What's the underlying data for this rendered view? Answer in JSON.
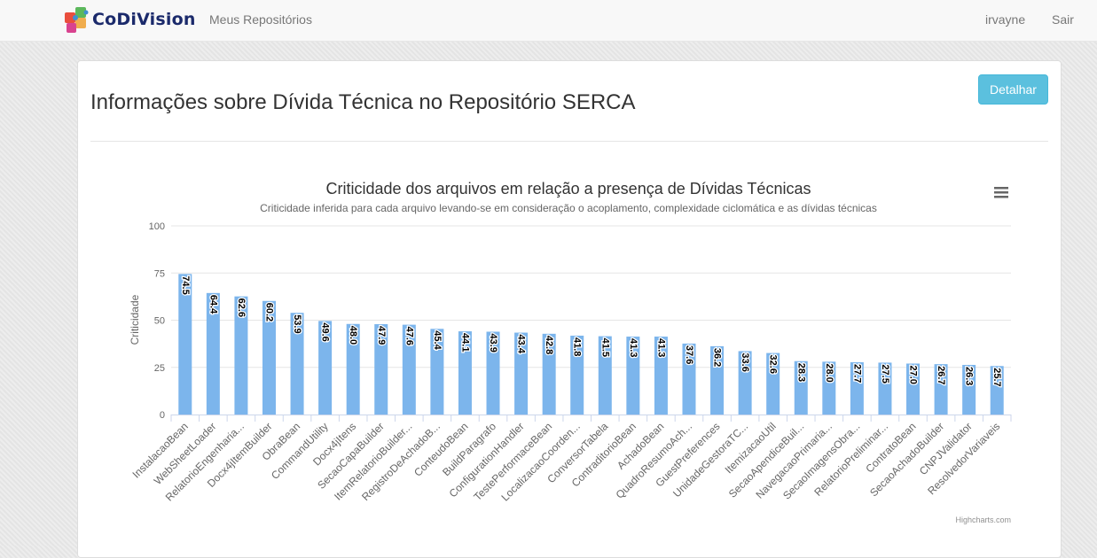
{
  "navbar": {
    "brand": "CoDiVision",
    "links": [
      "Meus Repositórios"
    ],
    "user": "irvayne",
    "logout": "Sair"
  },
  "page": {
    "title": "Informações sobre Dívida Técnica no Repositório SERCA",
    "detail_button": "Detalhar"
  },
  "chart_data": {
    "type": "bar",
    "title": "Criticidade dos arquivos em relação a presença de Dívidas Técnicas",
    "subtitle": "Criticidade inferida para cada arquivo levando-se em consideração o acoplamento, complexidade ciclomática e as dívidas técnicas",
    "ylabel": "Criticidade",
    "xlabel": "",
    "ylim": [
      0,
      100
    ],
    "yticks": [
      0,
      25,
      50,
      75,
      100
    ],
    "grid": true,
    "color": "#7cb5ec",
    "credits": "Highcharts.com",
    "categories": [
      "InstalacaoBean",
      "WebSheetLoader",
      "RelatorioEngenharia...",
      "Docx4jItemBuilder",
      "ObraBean",
      "CommandUtility",
      "Docx4jItens",
      "SecaoCapaBuilder",
      "ItemRelatorioBuilder...",
      "RegistroDeAchadoB...",
      "ConteudoBean",
      "BuildParagrafo",
      "ConfigurationHandler",
      "TestePerformaceBean",
      "LocalizacaoCoorden...",
      "ConversorTabela",
      "ContraditorioBean",
      "AchadoBean",
      "QuadroResumoAch...",
      "GuestPreferences",
      "UnidadeGestoraTC...",
      "ItemizacaoUtil",
      "SecaoApendiceBuil...",
      "NavegacaoPrimaria...",
      "SecaoImagensObra...",
      "RelatorioPreliminar...",
      "ContratoBean",
      "SecaoAchadoBuilder",
      "CNPJValidator",
      "ResolvedorVariaveis"
    ],
    "values": [
      74.5,
      64.4,
      62.6,
      60.2,
      53.9,
      49.6,
      48.0,
      47.9,
      47.6,
      45.4,
      44.1,
      43.9,
      43.4,
      42.8,
      41.8,
      41.5,
      41.3,
      41.3,
      37.6,
      36.2,
      33.6,
      32.6,
      28.3,
      28.0,
      27.7,
      27.5,
      27.0,
      26.7,
      26.3,
      25.7
    ],
    "data_labels": [
      "74.5",
      "64.4",
      "62.6",
      "60.2",
      "53.9",
      "49.6",
      "48.0",
      "47.9",
      "47.6",
      "45.4",
      "44.1",
      "43.9",
      "43.4",
      "42.8",
      "41.8",
      "41.5",
      "41.3",
      "41.3",
      "37.6",
      "36.2",
      "33.6",
      "32.6",
      "28.3",
      "28.0",
      "27.7",
      "27.5",
      "27.0",
      "26.7",
      "26.3",
      "25.7"
    ]
  }
}
